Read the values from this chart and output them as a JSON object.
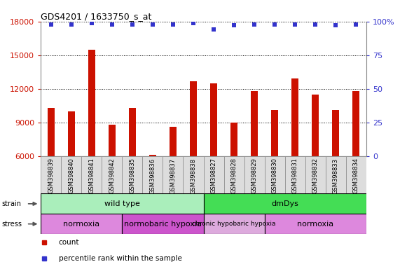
{
  "title": "GDS4201 / 1633750_s_at",
  "samples": [
    "GSM398839",
    "GSM398840",
    "GSM398841",
    "GSM398842",
    "GSM398835",
    "GSM398836",
    "GSM398837",
    "GSM398838",
    "GSM398827",
    "GSM398828",
    "GSM398829",
    "GSM398830",
    "GSM398831",
    "GSM398832",
    "GSM398833",
    "GSM398834"
  ],
  "counts": [
    10300,
    10000,
    15500,
    8800,
    10300,
    6100,
    8600,
    12700,
    12500,
    9000,
    11800,
    10100,
    12900,
    11500,
    10100,
    11800
  ],
  "percentile_ranks": [
    98,
    98,
    99,
    98,
    98,
    98,
    98,
    99,
    94,
    97,
    98,
    98,
    98,
    98,
    97,
    98
  ],
  "bar_color": "#cc1100",
  "dot_color": "#3333cc",
  "ylim_left": [
    6000,
    18000
  ],
  "ylim_right": [
    0,
    100
  ],
  "yticks_left": [
    6000,
    9000,
    12000,
    15000,
    18000
  ],
  "yticks_right": [
    0,
    25,
    50,
    75,
    100
  ],
  "strain_groups": [
    {
      "label": "wild type",
      "start": 0,
      "end": 8,
      "color": "#aaeebb"
    },
    {
      "label": "dmDys",
      "start": 8,
      "end": 16,
      "color": "#44dd55"
    }
  ],
  "stress_groups": [
    {
      "label": "normoxia",
      "start": 0,
      "end": 4,
      "color": "#dd88dd"
    },
    {
      "label": "normobaric hypoxia",
      "start": 4,
      "end": 8,
      "color": "#cc55cc"
    },
    {
      "label": "chronic hypobaric hypoxia",
      "start": 8,
      "end": 11,
      "color": "#ddaadd"
    },
    {
      "label": "normoxia",
      "start": 11,
      "end": 16,
      "color": "#dd88dd"
    }
  ],
  "legend_items": [
    {
      "label": "count",
      "color": "#cc1100"
    },
    {
      "label": "percentile rank within the sample",
      "color": "#3333cc"
    }
  ],
  "background_color": "#ffffff",
  "tick_label_color_left": "#cc1100",
  "tick_label_color_right": "#3333cc",
  "xlabel_bg": "#dddddd"
}
